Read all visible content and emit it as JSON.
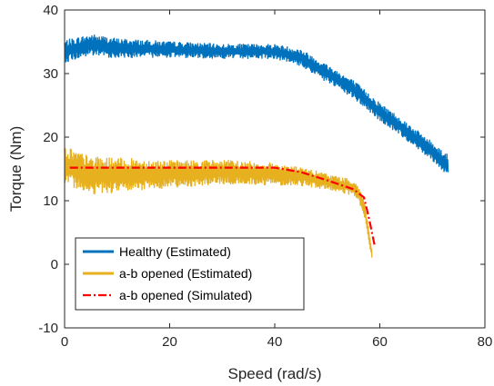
{
  "chart_data": {
    "type": "line",
    "title": "",
    "xlabel": "Speed (rad/s)",
    "ylabel": "Torque (Nm)",
    "xlim": [
      0,
      80
    ],
    "ylim": [
      -10,
      40
    ],
    "xticks": [
      0,
      20,
      40,
      60,
      80
    ],
    "yticks": [
      -10,
      0,
      10,
      20,
      30,
      40
    ],
    "xtick_labels": [
      "0",
      "20",
      "40",
      "60",
      "80"
    ],
    "ytick_labels": [
      "-10",
      "0",
      "10",
      "20",
      "30",
      "40"
    ],
    "grid": false,
    "legend": "bottom-left",
    "series": [
      {
        "name": "Healthy (Estimated)",
        "color": "#0072bd",
        "style": "noisy-band",
        "x": [
          0,
          5,
          10,
          20,
          30,
          40,
          45,
          50,
          55,
          60,
          65,
          70,
          73
        ],
        "y": [
          33.5,
          34.5,
          34,
          33.8,
          33.5,
          33.5,
          32.5,
          30,
          27.5,
          24,
          21,
          17.8,
          15.5
        ],
        "band_halfwidth": [
          1.8,
          1.8,
          1.6,
          1.3,
          1.2,
          1.2,
          1.4,
          1.5,
          1.5,
          1.5,
          1.5,
          1.5,
          1.8
        ]
      },
      {
        "name": "a-b opened (Estimated)",
        "color": "#e6b01e",
        "style": "noisy-band",
        "x": [
          0,
          2,
          5,
          10,
          20,
          30,
          40,
          45,
          50,
          55,
          56,
          57,
          58,
          58.5
        ],
        "y": [
          15.5,
          15,
          14,
          14,
          14.2,
          14.5,
          14.2,
          13.8,
          13,
          12,
          11,
          9,
          4,
          1.5
        ],
        "band_halfwidth": [
          3.5,
          3,
          3,
          2.8,
          2.2,
          2,
          1.8,
          1.5,
          1.3,
          1.3,
          1.3,
          1.3,
          1.2,
          0.8
        ]
      },
      {
        "name": "a-b opened (Simulated)",
        "color": "#ff0000",
        "style": "dash-dot",
        "x": [
          1,
          10,
          20,
          30,
          40,
          45,
          50,
          55,
          57,
          58,
          59
        ],
        "y": [
          15.2,
          15.2,
          15.2,
          15.2,
          15.2,
          14.5,
          13.2,
          11.8,
          10.5,
          7,
          3
        ]
      }
    ]
  }
}
